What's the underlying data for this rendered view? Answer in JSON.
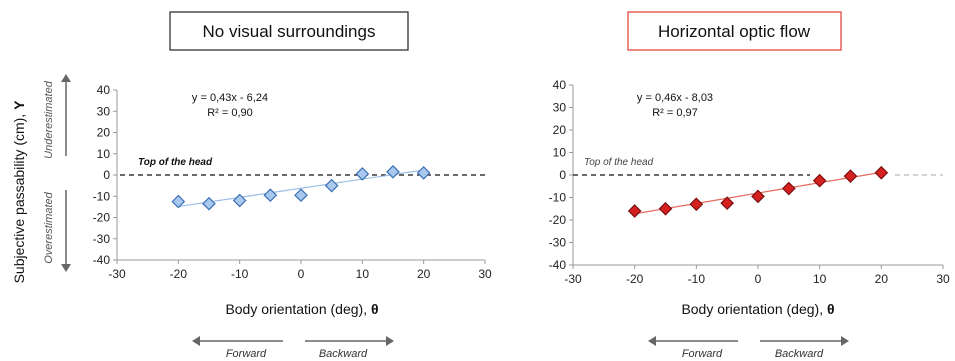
{
  "figure": {
    "ylabel_text": "Subjective passability (cm), ",
    "ylabel_symbol": "Y",
    "xlabel_text": "Body orientation (deg), ",
    "xlabel_symbol": "θ",
    "side_labels": {
      "upper": "Underestimated",
      "lower": "Overestimated"
    },
    "direction_labels": {
      "left": "Forward",
      "right": "Backward"
    }
  },
  "chart_data": [
    {
      "type": "scatter",
      "title": "No visual surroundings",
      "title_border_color": "#222222",
      "marker": "diamond",
      "marker_fill": "#a9c8ee",
      "marker_stroke": "#3a6fb5",
      "trend_color": "#9cbde6",
      "x": [
        -20,
        -15,
        -10,
        -5,
        0,
        5,
        10,
        15,
        20
      ],
      "y": [
        -12.5,
        -13.5,
        -12,
        -9.5,
        -9.5,
        -5,
        0.5,
        1.5,
        1
      ],
      "xlim": [
        -30,
        30
      ],
      "ylim": [
        -40,
        40
      ],
      "xticks": [
        -30,
        -20,
        -10,
        0,
        10,
        20,
        30
      ],
      "yticks": [
        -40,
        -30,
        -20,
        -10,
        0,
        10,
        20,
        30,
        40
      ],
      "trendline": {
        "slope": 0.43,
        "intercept": -6.24
      },
      "equation": "y = 0,43x - 6,24",
      "r2": "R² = 0,90",
      "reference_line": {
        "y": 0,
        "label": "Top of the head",
        "label_style": "bold-italic"
      }
    },
    {
      "type": "scatter",
      "title": "Horizontal optic flow",
      "title_border_color": "#e03b30",
      "marker": "diamond",
      "marker_fill": "#d52020",
      "marker_stroke": "#7a0f0f",
      "trend_color": "#e86a60",
      "x": [
        -20,
        -15,
        -10,
        -5,
        0,
        5,
        10,
        15,
        20
      ],
      "y": [
        -16,
        -15,
        -13,
        -12.5,
        -9.5,
        -6,
        -2.5,
        -0.5,
        1
      ],
      "xlim": [
        -30,
        30
      ],
      "ylim": [
        -40,
        40
      ],
      "xticks": [
        -30,
        -20,
        -10,
        0,
        10,
        20,
        30
      ],
      "yticks": [
        -40,
        -30,
        -20,
        -10,
        0,
        10,
        20,
        30,
        40
      ],
      "trendline": {
        "slope": 0.46,
        "intercept": -8.03
      },
      "equation": "y = 0,46x - 8,03",
      "r2": "R² = 0,97",
      "reference_line": {
        "y": 0,
        "label": "Top of the head",
        "label_style": "italic"
      }
    }
  ]
}
